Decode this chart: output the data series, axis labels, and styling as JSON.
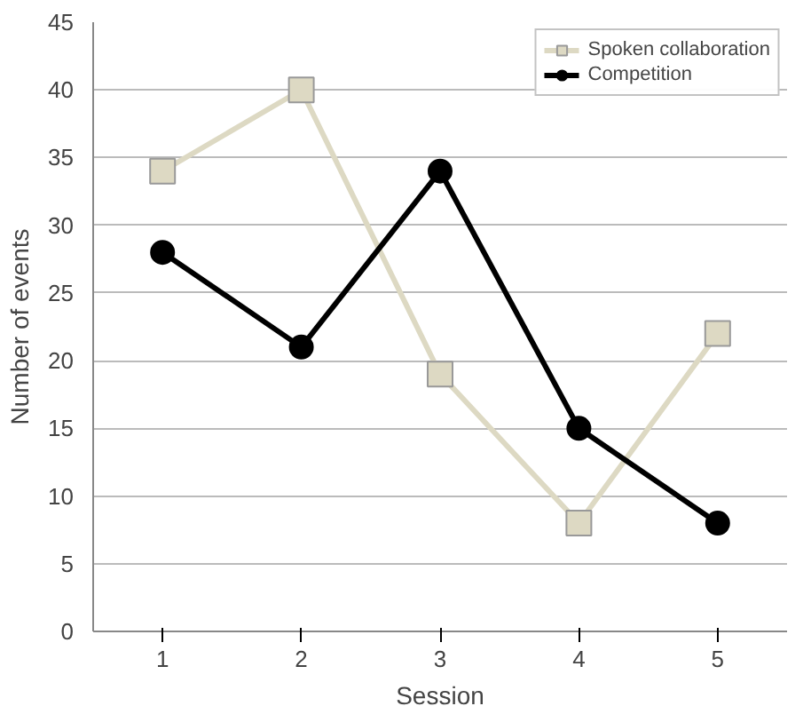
{
  "chart_data": {
    "type": "line",
    "xlabel": "Session",
    "ylabel": "Number of events",
    "categories": [
      "1",
      "2",
      "3",
      "4",
      "5"
    ],
    "series": [
      {
        "name": "Spoken collaboration",
        "color": "#ddd9c3",
        "values": [
          34,
          40,
          19,
          8,
          22
        ],
        "marker": "square"
      },
      {
        "name": "Competition",
        "color": "#000000",
        "values": [
          28,
          21,
          34,
          15,
          8
        ],
        "marker": "circle"
      }
    ],
    "ylim": [
      0,
      45
    ],
    "yticks": [
      0,
      5,
      10,
      15,
      20,
      25,
      30,
      35,
      40,
      45
    ],
    "grid": "y",
    "legend": "top right"
  }
}
